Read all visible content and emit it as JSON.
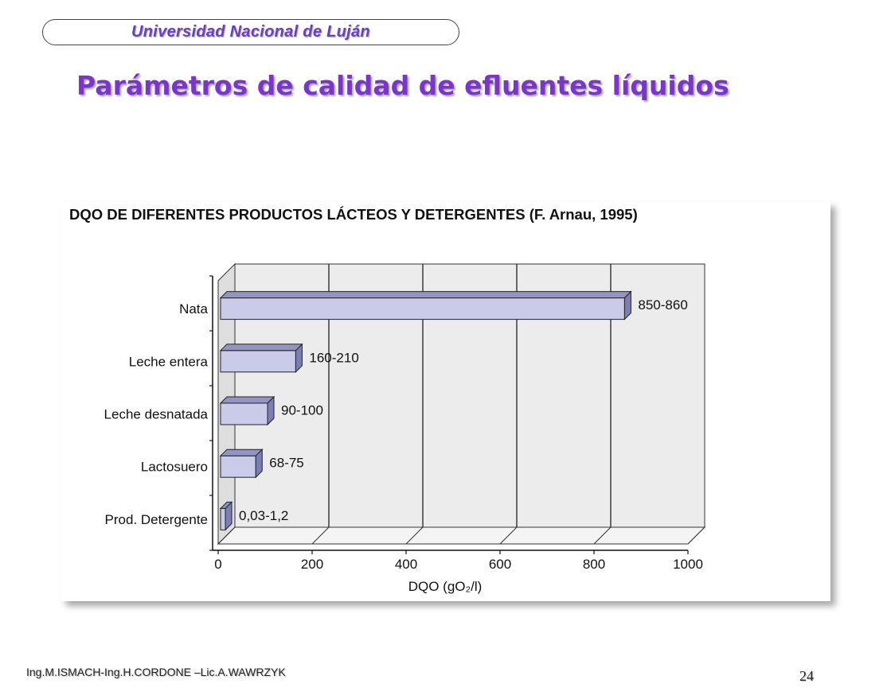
{
  "header": {
    "institution": "Universidad Nacional de Luján"
  },
  "slide": {
    "title": "Parámetros de calidad de efluentes líquidos"
  },
  "chart_data": {
    "type": "bar",
    "orientation": "horizontal",
    "title": "DQO DE DIFERENTES PRODUCTOS LÁCTEOS Y DETERGENTES (F. Arnau, 1995)",
    "xlabel": "DQO (gO₂/l)",
    "ylabel": "",
    "xlim": [
      0,
      1000
    ],
    "x_ticks": [
      "0",
      "200",
      "400",
      "600",
      "800",
      "1000"
    ],
    "grid": true,
    "categories": [
      "Nata",
      "Leche entera",
      "Leche desnatada",
      "Lactosuero",
      "Prod. Detergente"
    ],
    "values": [
      860,
      160,
      100,
      75,
      1.2
    ],
    "data_labels": [
      "850-860",
      "160-210",
      "90-100",
      "68-75",
      "0,03-1,2"
    ],
    "bar_color": "#c9cbe8",
    "bar_top_color": "#9294c4",
    "bar_side_color": "#7c7fb6",
    "wall_color": "#ececec"
  },
  "footer": {
    "authors": "Ing.M.ISMACH-Ing.H.CORDONE –Lic.A.WAWRZYK",
    "page": "24"
  }
}
